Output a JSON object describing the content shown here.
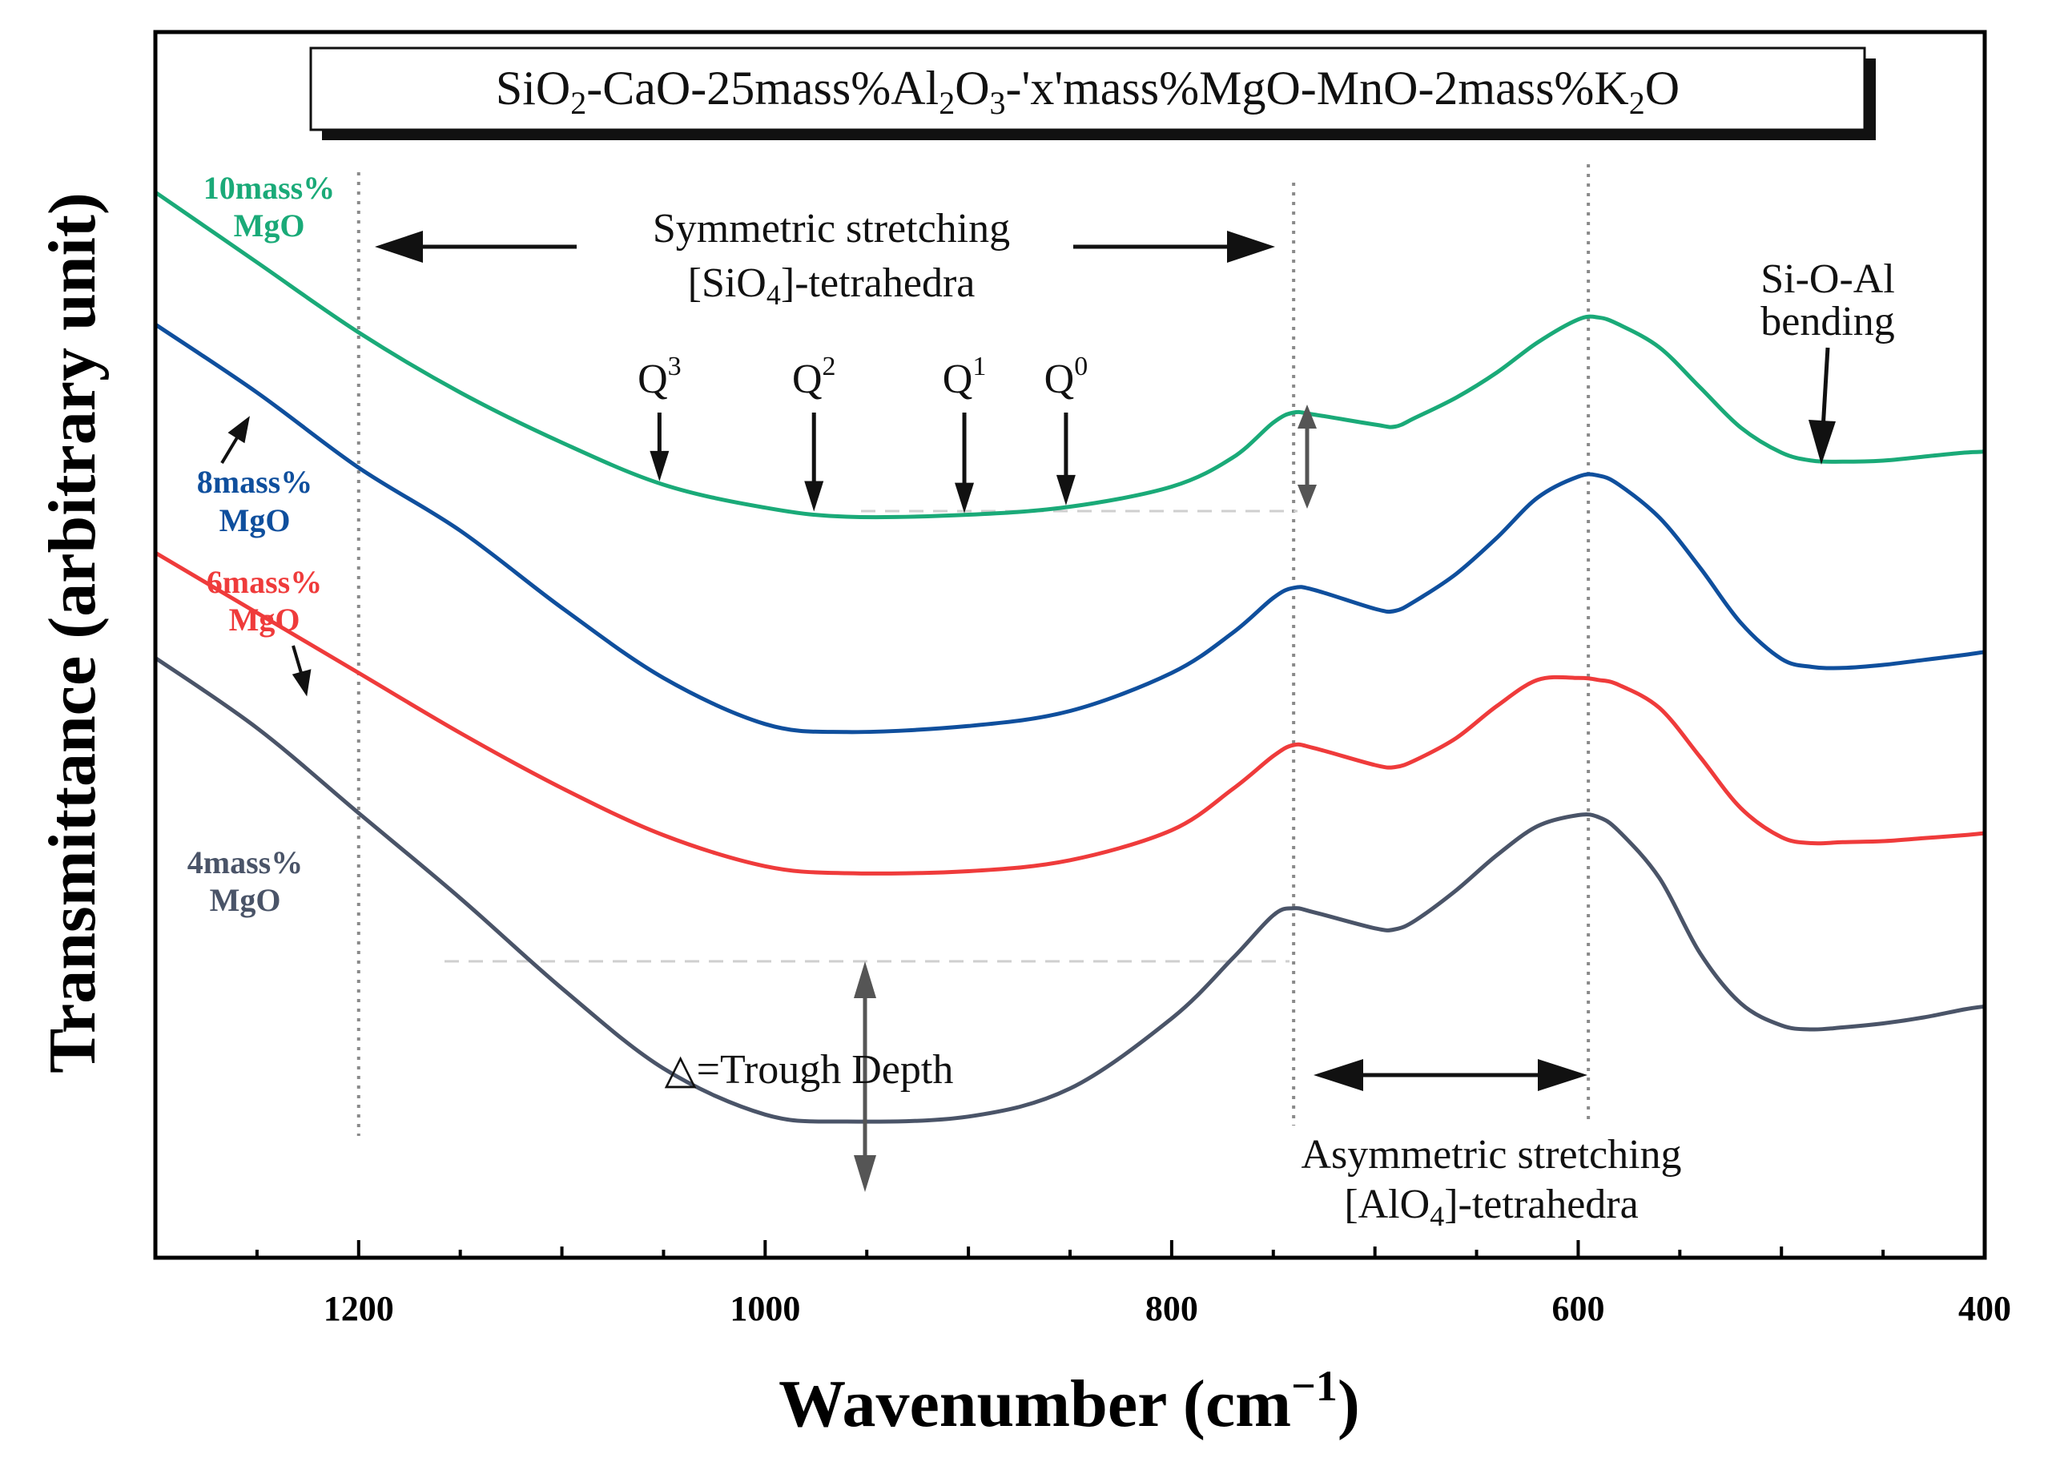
{
  "chart_data": {
    "type": "line",
    "title": "SiO₂-CaO-25mass%Al₂O₃-'x'mass%MgO-MnO-2mass%K₂O",
    "xlabel": "Wavenumber (cm⁻¹)",
    "ylabel": "Transmittance (arbitrary unit)",
    "xlim": [
      1300,
      400
    ],
    "ylim": [
      0,
      100
    ],
    "x_ticks": [
      1200,
      1000,
      800,
      600,
      400
    ],
    "x_tick_labels": [
      "1200",
      "1000",
      "800",
      "600",
      "400"
    ],
    "grid": false,
    "reference_lines_x": [
      1200,
      740,
      595
    ],
    "series": [
      {
        "name": "10mass% MgO",
        "label_line1": "10mass%",
        "label_line2": "MgO",
        "color": "#1aaa78",
        "x": [
          1300,
          1250,
          1200,
          1150,
          1100,
          1050,
          1000,
          960,
          900,
          850,
          800,
          770,
          750,
          740,
          730,
          700,
          690,
          680,
          660,
          640,
          620,
          600,
          590,
          580,
          560,
          540,
          520,
          500,
          485,
          470,
          450,
          430,
          410,
          400
        ],
        "y": [
          100,
          93,
          86,
          80,
          75,
          70.8,
          68.5,
          67.6,
          67.8,
          68.6,
          70.6,
          73.5,
          77,
          78,
          77.8,
          76.8,
          76.6,
          77.5,
          79.5,
          82,
          85,
          87.3,
          87.5,
          86.8,
          84.5,
          80.5,
          76.5,
          74,
          73.2,
          73.1,
          73.2,
          73.6,
          74,
          74.1
        ]
      },
      {
        "name": "8mass% MgO",
        "label_line1": "8mass%",
        "label_line2": "MgO",
        "color": "#0f4f9d",
        "x": [
          1300,
          1250,
          1200,
          1150,
          1100,
          1050,
          1000,
          960,
          900,
          850,
          800,
          770,
          750,
          740,
          730,
          700,
          690,
          680,
          660,
          640,
          620,
          600,
          590,
          580,
          560,
          540,
          520,
          500,
          485,
          470,
          450,
          430,
          410,
          400
        ],
        "y": [
          86.8,
          80,
          72.5,
          66.2,
          58.5,
          51.5,
          46.9,
          46.1,
          46.7,
          48.2,
          52,
          56,
          59.5,
          60.5,
          60.3,
          58.4,
          58.2,
          59.2,
          61.9,
          65.5,
          69.5,
          71.6,
          71.7,
          70.8,
          67.5,
          62.5,
          57,
          53.4,
          52.6,
          52.5,
          52.8,
          53.3,
          53.8,
          54.1
        ]
      },
      {
        "name": "6mass% MgO",
        "label_line1": "6mass%",
        "label_line2": "MgO",
        "color": "#ef3b3b",
        "x": [
          1300,
          1250,
          1200,
          1150,
          1100,
          1050,
          1000,
          960,
          900,
          850,
          800,
          770,
          750,
          740,
          730,
          700,
          690,
          680,
          660,
          640,
          620,
          600,
          590,
          580,
          560,
          540,
          520,
          500,
          485,
          470,
          450,
          430,
          410,
          400
        ],
        "y": [
          64,
          58,
          52,
          46,
          40.5,
          35.8,
          32.7,
          32,
          32.2,
          33.3,
          36.3,
          40.4,
          43.7,
          44.8,
          44.5,
          42.8,
          42.6,
          43.3,
          45.5,
          48.7,
          51.3,
          51.5,
          51.3,
          50.8,
          48.5,
          43.6,
          38.5,
          35.6,
          35,
          35.1,
          35.2,
          35.5,
          35.8,
          36
        ]
      },
      {
        "name": "4mass% MgO",
        "label_line1": "4mass%",
        "label_line2": "MgO",
        "color": "#4a5468",
        "x": [
          1300,
          1250,
          1200,
          1150,
          1100,
          1050,
          1000,
          960,
          900,
          850,
          800,
          770,
          750,
          740,
          730,
          700,
          690,
          680,
          660,
          640,
          620,
          600,
          590,
          580,
          560,
          540,
          520,
          500,
          485,
          470,
          450,
          430,
          410,
          400
        ],
        "y": [
          53.5,
          46.5,
          38,
          29.5,
          20.5,
          12.5,
          7.9,
          7.2,
          7.7,
          10.5,
          17.5,
          23.5,
          27.8,
          28.5,
          28.1,
          26.5,
          26.4,
          27.3,
          30.3,
          33.8,
          36.7,
          37.8,
          37.6,
          36.2,
          31.5,
          24,
          19,
          16.8,
          16.4,
          16.6,
          17,
          17.6,
          18.4,
          18.7
        ]
      }
    ],
    "annotations": {
      "symmetric_line1": "Symmetric stretching",
      "symmetric_line2_prefix": "[SiO",
      "symmetric_line2_sub": "4",
      "symmetric_line2_suffix": "]-tetrahedra",
      "asymmetric_line1": "Asymmetric stretching",
      "asymmetric_line2_prefix": "[AlO",
      "asymmetric_line2_sub": "4",
      "asymmetric_line2_suffix": "]-tetrahedra",
      "bending_line1": "Si-O-Al",
      "bending_line2": "bending",
      "trough_depth": "△=Trough Depth",
      "q_labels": [
        {
          "base": "Q",
          "sup": "3",
          "x": 1052
        },
        {
          "base": "Q",
          "sup": "2",
          "x": 976
        },
        {
          "base": "Q",
          "sup": "1",
          "x": 902
        },
        {
          "base": "Q",
          "sup": "0",
          "x": 852
        }
      ]
    },
    "title_parts": [
      "SiO",
      "2",
      "-CaO-25mass%Al",
      "2",
      "O",
      "3",
      "-'x'mass%MgO-MnO-2mass%K",
      "2",
      "O"
    ],
    "xlabel_parts": [
      "Wavenumber (cm",
      "−1",
      ")"
    ]
  }
}
